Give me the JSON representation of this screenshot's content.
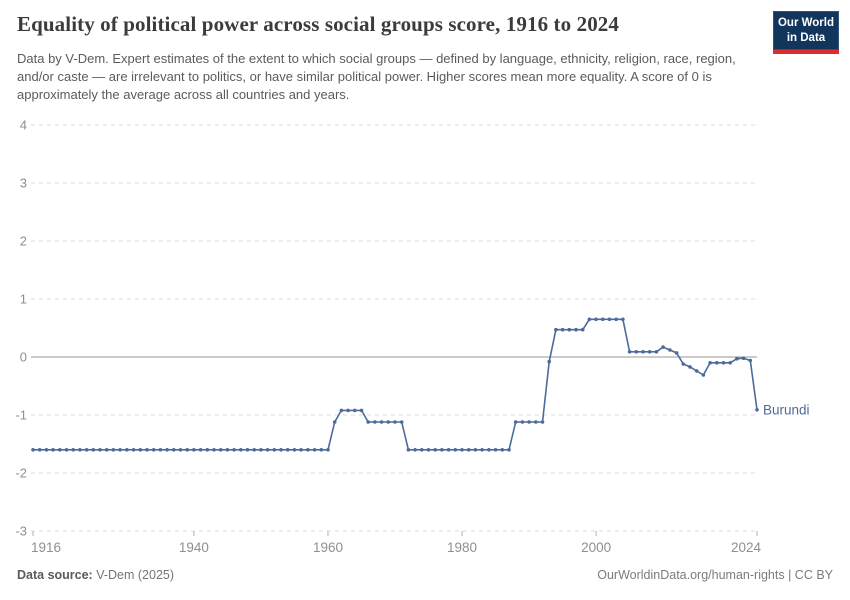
{
  "header": {
    "title": "Equality of political power across social groups score, 1916 to 2024",
    "subtitle": "Data by V-Dem. Expert estimates of the extent to which social groups — defined by language, ethnicity, religion, race, region, and/or caste — are irrelevant to politics, or have similar political power. Higher scores mean more equality. A score of 0 is approximately the average across all countries and years.",
    "logo": {
      "line1": "Our World",
      "line2": "in Data"
    }
  },
  "chart_data": {
    "type": "line",
    "title": "Equality of political power across social groups score, 1916 to 2024",
    "series_name": "Burundi",
    "xlabel": "",
    "ylabel": "",
    "xlim": [
      1916,
      2024
    ],
    "ylim": [
      -3,
      4
    ],
    "x_ticks": [
      1916,
      1940,
      1960,
      1980,
      2000,
      2024
    ],
    "y_ticks": [
      4,
      3,
      2,
      1,
      0,
      -1,
      -2,
      -3
    ],
    "grid": "horizontal-dashed",
    "legend_position": "line-end-label",
    "x": [
      1916,
      1917,
      1918,
      1919,
      1920,
      1921,
      1922,
      1923,
      1924,
      1925,
      1926,
      1927,
      1928,
      1929,
      1930,
      1931,
      1932,
      1933,
      1934,
      1935,
      1936,
      1937,
      1938,
      1939,
      1940,
      1941,
      1942,
      1943,
      1944,
      1945,
      1946,
      1947,
      1948,
      1949,
      1950,
      1951,
      1952,
      1953,
      1954,
      1955,
      1956,
      1957,
      1958,
      1959,
      1960,
      1961,
      1962,
      1963,
      1964,
      1965,
      1966,
      1967,
      1968,
      1969,
      1970,
      1971,
      1972,
      1973,
      1974,
      1975,
      1976,
      1977,
      1978,
      1979,
      1980,
      1981,
      1982,
      1983,
      1984,
      1985,
      1986,
      1987,
      1988,
      1989,
      1990,
      1991,
      1992,
      1993,
      1994,
      1995,
      1996,
      1997,
      1998,
      1999,
      2000,
      2001,
      2002,
      2003,
      2004,
      2005,
      2006,
      2007,
      2008,
      2009,
      2010,
      2011,
      2012,
      2013,
      2014,
      2015,
      2016,
      2017,
      2018,
      2019,
      2020,
      2021,
      2022,
      2023,
      2024
    ],
    "values": [
      -1.6,
      -1.6,
      -1.6,
      -1.6,
      -1.6,
      -1.6,
      -1.6,
      -1.6,
      -1.6,
      -1.6,
      -1.6,
      -1.6,
      -1.6,
      -1.6,
      -1.6,
      -1.6,
      -1.6,
      -1.6,
      -1.6,
      -1.6,
      -1.6,
      -1.6,
      -1.6,
      -1.6,
      -1.6,
      -1.6,
      -1.6,
      -1.6,
      -1.6,
      -1.6,
      -1.6,
      -1.6,
      -1.6,
      -1.6,
      -1.6,
      -1.6,
      -1.6,
      -1.6,
      -1.6,
      -1.6,
      -1.6,
      -1.6,
      -1.6,
      -1.6,
      -1.6,
      -1.12,
      -0.92,
      -0.92,
      -0.92,
      -0.92,
      -1.12,
      -1.12,
      -1.12,
      -1.12,
      -1.12,
      -1.12,
      -1.6,
      -1.6,
      -1.6,
      -1.6,
      -1.6,
      -1.6,
      -1.6,
      -1.6,
      -1.6,
      -1.6,
      -1.6,
      -1.6,
      -1.6,
      -1.6,
      -1.6,
      -1.6,
      -1.12,
      -1.12,
      -1.12,
      -1.12,
      -1.12,
      -0.08,
      0.47,
      0.47,
      0.47,
      0.47,
      0.47,
      0.65,
      0.65,
      0.65,
      0.65,
      0.65,
      0.65,
      0.09,
      0.09,
      0.09,
      0.09,
      0.09,
      0.17,
      0.12,
      0.07,
      -0.12,
      -0.17,
      -0.24,
      -0.31,
      -0.1,
      -0.1,
      -0.1,
      -0.1,
      -0.03,
      -0.02,
      -0.06,
      -0.91
    ]
  },
  "footer": {
    "source_label": "Data source:",
    "source_value": "V-Dem (2025)",
    "credit": "OurWorldinData.org/human-rights | CC BY"
  },
  "colors": {
    "line": "#4C6A9C",
    "series_label": "#4C6A9C",
    "grid": "#dcdcdc",
    "zero_line": "#949494",
    "axis_text": "#8f8f8f",
    "tick_mark": "#b3b3b3",
    "logo_bg": "#12355C",
    "logo_red": "#DC2E32"
  }
}
